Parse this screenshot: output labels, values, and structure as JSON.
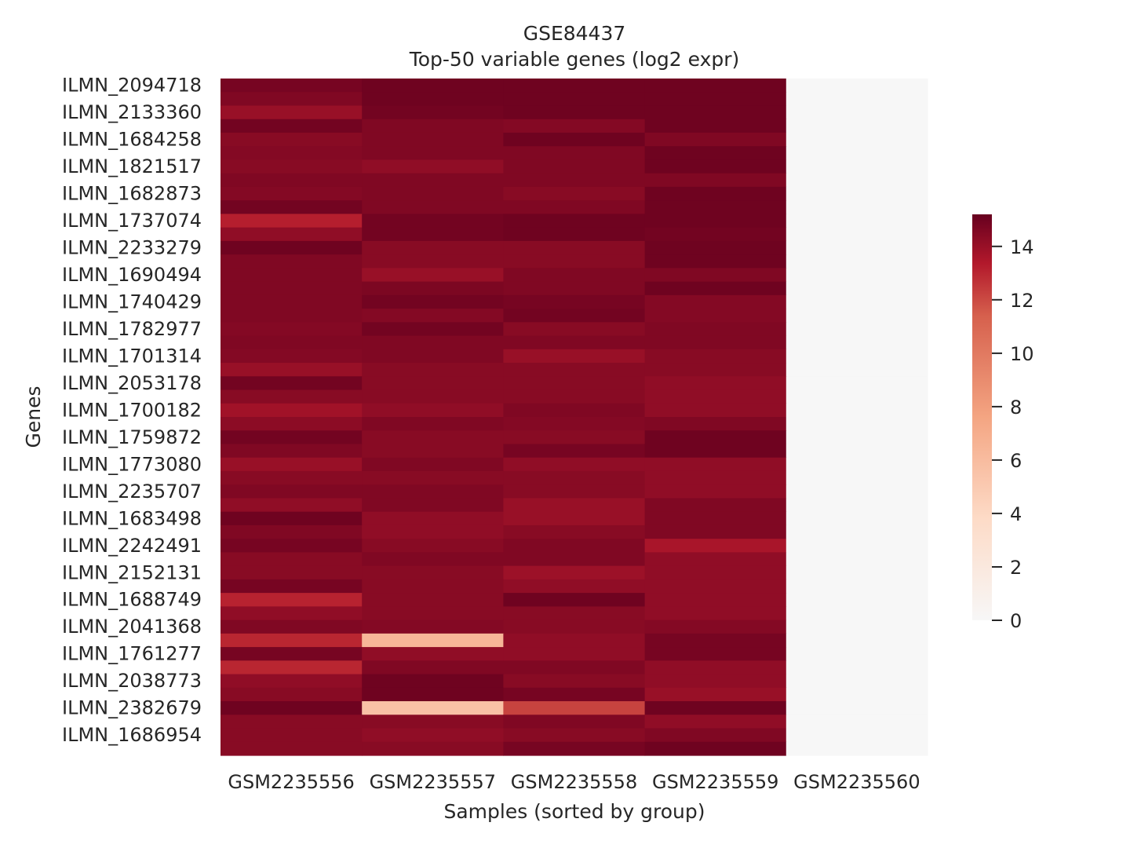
{
  "chart_data": {
    "type": "heatmap",
    "title": "GSE84437",
    "subtitle": "Top-50 variable genes (log2 expr)",
    "xlabel": "Samples (sorted by group)",
    "ylabel": "Genes",
    "x": [
      "GSM2235556",
      "GSM2235557",
      "GSM2235558",
      "GSM2235559",
      "GSM2235560"
    ],
    "y_tick_labels": [
      "ILMN_2094718",
      "ILMN_2133360",
      "ILMN_1684258",
      "ILMN_1821517",
      "ILMN_1682873",
      "ILMN_1737074",
      "ILMN_2233279",
      "ILMN_1690494",
      "ILMN_1740429",
      "ILMN_1782977",
      "ILMN_1701314",
      "ILMN_2053178",
      "ILMN_1700182",
      "ILMN_1759872",
      "ILMN_1773080",
      "ILMN_2235707",
      "ILMN_1683498",
      "ILMN_2242491",
      "ILMN_2152131",
      "ILMN_1688749",
      "ILMN_2041368",
      "ILMN_1761277",
      "ILMN_2038773",
      "ILMN_2382679",
      "ILMN_1686954"
    ],
    "values": [
      [
        14.8,
        15.0,
        15.0,
        15.0,
        0
      ],
      [
        14.6,
        15.0,
        15.0,
        15.0,
        0
      ],
      [
        14.0,
        14.9,
        15.0,
        15.0,
        0
      ],
      [
        14.9,
        14.6,
        14.5,
        15.0,
        0
      ],
      [
        14.4,
        14.6,
        15.0,
        14.6,
        0
      ],
      [
        14.5,
        14.6,
        14.6,
        15.0,
        0
      ],
      [
        14.4,
        14.2,
        14.6,
        15.0,
        0
      ],
      [
        14.6,
        14.6,
        14.6,
        14.6,
        0
      ],
      [
        14.5,
        14.6,
        14.4,
        15.0,
        0
      ],
      [
        14.9,
        14.6,
        14.6,
        15.0,
        0
      ],
      [
        13.2,
        14.9,
        15.0,
        15.0,
        0
      ],
      [
        14.2,
        14.9,
        15.0,
        14.9,
        0
      ],
      [
        15.0,
        14.4,
        14.4,
        15.0,
        0
      ],
      [
        14.6,
        14.4,
        14.4,
        15.0,
        0
      ],
      [
        14.6,
        14.0,
        14.6,
        14.6,
        0
      ],
      [
        14.6,
        14.7,
        14.6,
        15.0,
        0
      ],
      [
        14.6,
        14.9,
        14.8,
        14.5,
        0
      ],
      [
        14.6,
        14.5,
        14.9,
        14.5,
        0
      ],
      [
        14.5,
        14.9,
        14.4,
        14.6,
        0
      ],
      [
        14.6,
        14.6,
        14.6,
        14.6,
        0
      ],
      [
        14.5,
        14.6,
        14.0,
        14.4,
        0
      ],
      [
        14.0,
        14.4,
        14.4,
        14.4,
        0
      ],
      [
        14.9,
        14.4,
        14.4,
        14.2,
        0
      ],
      [
        14.4,
        14.4,
        14.4,
        14.2,
        0
      ],
      [
        13.8,
        14.2,
        14.6,
        14.2,
        0
      ],
      [
        14.3,
        14.6,
        14.5,
        14.6,
        0
      ],
      [
        14.9,
        14.4,
        14.4,
        15.0,
        0
      ],
      [
        14.6,
        14.4,
        14.8,
        15.0,
        0
      ],
      [
        14.0,
        14.6,
        14.2,
        14.2,
        0
      ],
      [
        14.4,
        14.4,
        14.4,
        14.2,
        0
      ],
      [
        14.6,
        14.6,
        14.4,
        14.2,
        0
      ],
      [
        14.2,
        14.6,
        14.0,
        14.6,
        0
      ],
      [
        15.0,
        14.2,
        14.0,
        14.6,
        0
      ],
      [
        14.6,
        14.2,
        14.4,
        14.6,
        0
      ],
      [
        14.8,
        14.4,
        14.6,
        13.6,
        0
      ],
      [
        14.4,
        14.6,
        14.6,
        14.2,
        0
      ],
      [
        14.4,
        14.4,
        13.9,
        14.2,
        0
      ],
      [
        14.8,
        14.4,
        14.2,
        14.2,
        0
      ],
      [
        13.1,
        14.4,
        15.0,
        14.2,
        0
      ],
      [
        14.2,
        14.4,
        14.4,
        14.2,
        0
      ],
      [
        14.6,
        14.5,
        14.4,
        14.5,
        0
      ],
      [
        13.0,
        6.4,
        14.2,
        14.8,
        0
      ],
      [
        14.8,
        14.2,
        14.2,
        14.8,
        0
      ],
      [
        13.0,
        14.6,
        14.6,
        14.2,
        0
      ],
      [
        14.2,
        15.0,
        14.4,
        14.2,
        0
      ],
      [
        14.4,
        15.0,
        14.8,
        14.0,
        0
      ],
      [
        15.0,
        5.6,
        12.2,
        15.0,
        0
      ],
      [
        14.4,
        14.4,
        14.6,
        14.2,
        0
      ],
      [
        14.4,
        14.2,
        14.4,
        14.6,
        0
      ],
      [
        14.4,
        14.4,
        14.8,
        15.0,
        0
      ]
    ],
    "vmin": 0,
    "vmax": 15.2,
    "colorbar_ticks": [
      0,
      2,
      4,
      6,
      8,
      10,
      12,
      14
    ],
    "colormap": "RdBu_r (upper half)",
    "grid": false
  }
}
